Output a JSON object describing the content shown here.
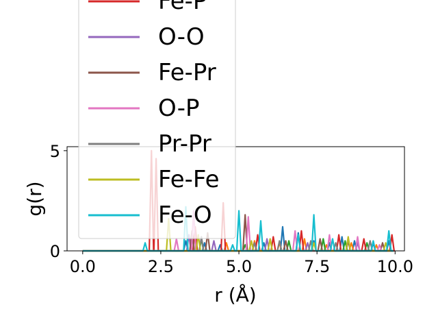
{
  "chart_data": {
    "type": "line",
    "title": "",
    "xlabel": "r (Å)",
    "ylabel": "g(r)",
    "xlim": [
      -0.5,
      10.3
    ],
    "ylim": [
      0,
      5.2
    ],
    "xticks": [
      {
        "value": 0.0,
        "label": "0.0"
      },
      {
        "value": 2.5,
        "label": "2.5"
      },
      {
        "value": 5.0,
        "label": "5.0"
      },
      {
        "value": 7.5,
        "label": "7.5"
      },
      {
        "value": 10.0,
        "label": "10.0"
      }
    ],
    "yticks": [
      {
        "value": 0,
        "label": "0"
      },
      {
        "value": 5,
        "label": "5"
      }
    ],
    "grid": false,
    "legend_position": "upper-left, overflowing above the axes",
    "series": [
      {
        "name": "",
        "color": "#1f77b4",
        "peaks": [
          [
            3.3,
            0.5
          ],
          [
            3.9,
            0.4
          ],
          [
            4.4,
            0.3
          ],
          [
            5.8,
            0.4
          ],
          [
            6.4,
            1.2
          ],
          [
            6.9,
            0.9
          ],
          [
            7.4,
            0.5
          ],
          [
            7.9,
            0.4
          ],
          [
            8.3,
            0.7
          ],
          [
            8.7,
            0.5
          ],
          [
            9.3,
            0.4
          ],
          [
            9.8,
            0.5
          ]
        ]
      },
      {
        "name": "",
        "color": "#ff7f0e",
        "peaks": [
          [
            4.6,
            0.4
          ],
          [
            5.5,
            0.5
          ],
          [
            6.3,
            0.4
          ],
          [
            7.1,
            0.6
          ],
          [
            7.8,
            0.3
          ],
          [
            8.6,
            0.4
          ],
          [
            9.4,
            0.3
          ]
        ]
      },
      {
        "name": "",
        "color": "#2ca02c",
        "peaks": [
          [
            3.8,
            0.6
          ],
          [
            5.2,
            0.3
          ],
          [
            6.6,
            0.5
          ],
          [
            7.7,
            0.6
          ],
          [
            8.4,
            0.5
          ],
          [
            9.1,
            0.4
          ]
        ]
      },
      {
        "name": "Fe-P",
        "color": "#d62728",
        "peaks": [
          [
            2.2,
            5.0
          ],
          [
            2.35,
            4.6
          ],
          [
            3.6,
            1.2
          ],
          [
            4.5,
            2.4
          ],
          [
            5.6,
            0.8
          ],
          [
            6.1,
            0.7
          ],
          [
            7.0,
            1.0
          ],
          [
            8.2,
            0.8
          ],
          [
            9.0,
            0.6
          ],
          [
            9.9,
            0.8
          ]
        ]
      },
      {
        "name": "O-O",
        "color": "#9467bd",
        "peaks": [
          [
            3.4,
            0.8
          ],
          [
            4.2,
            0.5
          ],
          [
            5.9,
            0.6
          ],
          [
            7.2,
            0.4
          ],
          [
            8.8,
            0.4
          ]
        ]
      },
      {
        "name": "Fe-Pr",
        "color": "#8c564b",
        "peaks": [
          [
            3.5,
            1.0
          ],
          [
            4.0,
            0.9
          ],
          [
            5.2,
            1.8
          ],
          [
            6.5,
            0.5
          ],
          [
            7.6,
            0.6
          ],
          [
            8.5,
            0.5
          ],
          [
            9.6,
            0.4
          ]
        ]
      },
      {
        "name": "O-P",
        "color": "#e377c2",
        "peaks": [
          [
            3.0,
            0.6
          ],
          [
            3.55,
            2.0
          ],
          [
            5.3,
            1.7
          ],
          [
            6.8,
            1.0
          ],
          [
            7.9,
            0.8
          ],
          [
            8.8,
            0.7
          ],
          [
            9.5,
            0.3
          ]
        ]
      },
      {
        "name": "Pr-Pr",
        "color": "#7f7f7f",
        "peaks": [
          [
            3.8,
            0.7
          ],
          [
            5.5,
            0.4
          ],
          [
            6.3,
            0.5
          ],
          [
            7.3,
            0.5
          ],
          [
            8.1,
            0.4
          ],
          [
            9.2,
            0.5
          ]
        ]
      },
      {
        "name": "Fe-Fe",
        "color": "#bcbd22",
        "peaks": [
          [
            2.75,
            1.6
          ],
          [
            3.7,
            0.8
          ],
          [
            5.4,
            0.5
          ],
          [
            6.0,
            0.6
          ],
          [
            7.4,
            0.4
          ],
          [
            8.5,
            0.7
          ],
          [
            9.7,
            0.4
          ]
        ]
      },
      {
        "name": "Fe-O",
        "color": "#17becf",
        "peaks": [
          [
            2.0,
            0.4
          ],
          [
            3.3,
            2.2
          ],
          [
            4.8,
            0.3
          ],
          [
            5.0,
            2.0
          ],
          [
            5.7,
            1.5
          ],
          [
            6.9,
            0.8
          ],
          [
            7.4,
            1.8
          ],
          [
            8.0,
            0.6
          ],
          [
            9.3,
            0.5
          ],
          [
            9.8,
            1.0
          ]
        ]
      }
    ],
    "legend": [
      "Fe-P",
      "O-O",
      "Fe-Pr",
      "O-P",
      "Pr-Pr",
      "Fe-Fe",
      "Fe-O"
    ]
  }
}
